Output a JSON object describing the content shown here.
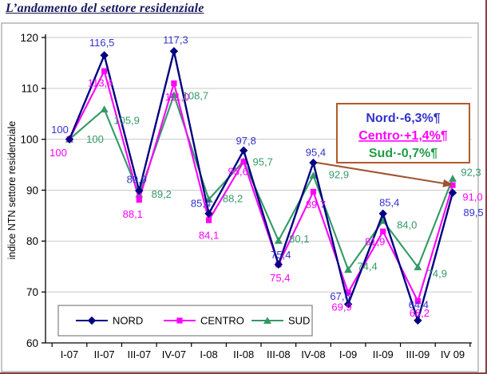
{
  "page": {
    "title": "L’andamento del settore residenziale"
  },
  "chart_data": {
    "type": "line",
    "title": "L’andamento del settore residenziale",
    "ylabel": "indice NTN settore residenziale",
    "xlabel": "",
    "ylim": [
      60,
      120
    ],
    "ytick_step": 10,
    "grid": true,
    "legend_position": "bottom-left",
    "categories": [
      "I-07",
      "II-07",
      "III-07",
      "IV-07",
      "I-08",
      "II-08",
      "III-08",
      "IV-08",
      "I-09",
      "II-09",
      "III-09",
      "IV 09"
    ],
    "series": [
      {
        "name": "NORD",
        "marker": "diamond",
        "line_color": "#000080",
        "label_color": "#3333cc",
        "values": [
          100,
          116.5,
          89.9,
          117.3,
          85.4,
          97.8,
          75.4,
          95.4,
          67.6,
          85.4,
          64.4,
          89.5
        ],
        "labels": [
          "100",
          "116,5",
          "89,9",
          "117,3",
          "85,4",
          "97,8",
          "75,4",
          "95,4",
          "67,6",
          "85,4",
          "64,4",
          "89,5"
        ]
      },
      {
        "name": "CENTRO",
        "marker": "square",
        "line_color": "#ff00ff",
        "label_color": "#ff00ff",
        "values": [
          100,
          113.4,
          88.1,
          111.0,
          84.1,
          95.6,
          75.4,
          89.7,
          69.9,
          81.9,
          68.2,
          91.0
        ],
        "labels": [
          "100",
          "113,4",
          "88,1",
          "111,0",
          "84,1",
          "95,6",
          "75,4",
          "89,7",
          "69,9",
          "81,9",
          "68,2",
          "91,0"
        ]
      },
      {
        "name": "SUD",
        "marker": "triangle",
        "line_color": "#339966",
        "label_color": "#339966",
        "values": [
          100,
          105.9,
          89.2,
          108.7,
          88.2,
          95.7,
          80.1,
          92.9,
          74.4,
          84.0,
          74.9,
          92.3
        ],
        "labels": [
          "100",
          "105,9",
          "89,2",
          "108,7",
          "88,2",
          "95,7",
          "80,1",
          "92,9",
          "74,4",
          "84,0",
          "74,9",
          "92,3"
        ]
      }
    ],
    "annotation": {
      "lines": [
        {
          "text": "Nord·-6,3%¶",
          "color": "#3333cc",
          "underline": false
        },
        {
          "text": "Centro·+1,4%¶",
          "color": "#ff00ff",
          "underline": true
        },
        {
          "text": "Sud·-0,7%¶",
          "color": "#1f9d46",
          "underline": false
        }
      ],
      "border_color": "#b05a2a",
      "arrow_color": "#a0522d"
    }
  }
}
